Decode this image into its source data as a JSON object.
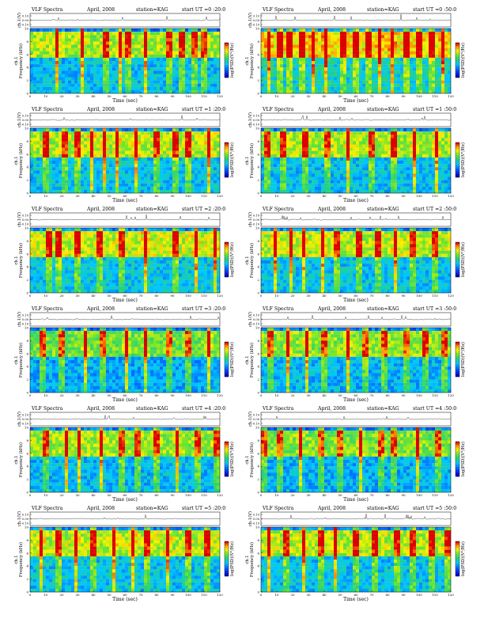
{
  "page": {
    "title_text": "VLF Spectra",
    "month": "April, 2008",
    "station": "station=KAG"
  },
  "chart_data": [
    {
      "type": "heatmap",
      "title": "VLF Spectra",
      "date": "April, 2008",
      "station": "station=KAG",
      "start": "start  UT  =0 :20:0",
      "strip_label": "ch.1(V)",
      "ylabel": "Frequency (kHz)",
      "ylabel_prefix": "ch.1",
      "xlabel": "Time  (sec)",
      "colorbar_label": "log(PSD)(V²/Hz)",
      "xlim": [
        0,
        120
      ],
      "ylim": [
        0,
        10
      ],
      "xticks": [
        0,
        10,
        20,
        30,
        40,
        50,
        60,
        70,
        80,
        90,
        100,
        110,
        120
      ],
      "yticks": [
        0,
        2,
        4,
        6,
        8,
        10
      ],
      "strip_ticks": [
        "0.10",
        "0.00",
        "-0.10"
      ],
      "intensity": 0.5,
      "burst_times": [
        17,
        33,
        48,
        57,
        62,
        73,
        88,
        96,
        104,
        110
      ]
    },
    {
      "type": "heatmap",
      "title": "VLF Spectra",
      "date": "April, 2008",
      "station": "station=KAG",
      "start": "start  UT  =0 :50:0",
      "strip_label": "ch.1(V)",
      "ylabel": "Frequency (kHz)",
      "ylabel_prefix": "ch.1",
      "xlabel": "Time  (sec)",
      "colorbar_label": "log(PSD)(V²/Hz)",
      "xlim": [
        0,
        120
      ],
      "ylim": [
        0,
        10
      ],
      "xticks": [
        0,
        10,
        20,
        30,
        40,
        50,
        60,
        70,
        80,
        90,
        100,
        110,
        120
      ],
      "yticks": [
        0,
        2,
        4,
        6,
        8,
        10
      ],
      "strip_ticks": [
        "0.10",
        "0.00",
        "-0.10"
      ],
      "intensity": 0.8,
      "burst_times": [
        5,
        12,
        18,
        26,
        33,
        41,
        52,
        60,
        68,
        75,
        83,
        92,
        100,
        108,
        115
      ]
    },
    {
      "type": "heatmap",
      "title": "VLF Spectra",
      "date": "April, 2008",
      "station": "station=KAG",
      "start": "start  UT  =1 :20:0",
      "strip_label": "ch.1(V)",
      "ylabel": "Frequency (kHz)",
      "ylabel_prefix": "ch.1",
      "xlabel": "Time  (sec)",
      "colorbar_label": "log(PSD)(V²/Hz)",
      "xlim": [
        0,
        120
      ],
      "ylim": [
        0,
        10
      ],
      "xticks": [
        0,
        10,
        20,
        30,
        40,
        50,
        60,
        70,
        80,
        90,
        100,
        110,
        120
      ],
      "yticks": [
        0,
        2,
        4,
        6,
        8,
        10
      ],
      "strip_ticks": [
        "0.10",
        "0.00",
        "-0.10"
      ],
      "intensity": 0.55,
      "burst_times": [
        10,
        22,
        30,
        39,
        47,
        55,
        67,
        80,
        92,
        100,
        113
      ]
    },
    {
      "type": "heatmap",
      "title": "VLF Spectra",
      "date": "April, 2008",
      "station": "station=KAG",
      "start": "start  UT  =1 :50:0",
      "strip_label": "ch.1(V)",
      "ylabel": "Frequency (kHz)",
      "ylabel_prefix": "ch.1",
      "xlabel": "Time  (sec)",
      "colorbar_label": "log(PSD)(V²/Hz)",
      "xlim": [
        0,
        120
      ],
      "ylim": [
        0,
        10
      ],
      "xticks": [
        0,
        10,
        20,
        30,
        40,
        50,
        60,
        70,
        80,
        90,
        100,
        110,
        120
      ],
      "yticks": [
        0,
        2,
        4,
        6,
        8,
        10
      ],
      "strip_ticks": [
        "0.10",
        "0.00",
        "-0.10"
      ],
      "intensity": 0.5,
      "burst_times": [
        4,
        14,
        28,
        42,
        55,
        70,
        84,
        97,
        111
      ]
    },
    {
      "type": "heatmap",
      "title": "VLF Spectra",
      "date": "April, 2008",
      "station": "station=KAG",
      "start": "start  UT  =2 :20:0",
      "strip_label": "ch.1(V)",
      "ylabel": "Frequency (kHz)",
      "ylabel_prefix": "ch.1",
      "xlabel": "Time  (sec)",
      "colorbar_label": "log(PSD)(V²/Hz)",
      "xlim": [
        0,
        120
      ],
      "ylim": [
        0,
        10
      ],
      "xticks": [
        0,
        10,
        20,
        30,
        40,
        50,
        60,
        70,
        80,
        90,
        100,
        110,
        120
      ],
      "yticks": [
        0,
        2,
        4,
        6,
        8,
        10
      ],
      "strip_ticks": [
        "0.10",
        "0.00",
        "-0.10"
      ],
      "intensity": 0.6,
      "burst_times": [
        12,
        18,
        30,
        44,
        58,
        73,
        92,
        105,
        117
      ]
    },
    {
      "type": "heatmap",
      "title": "VLF Spectra",
      "date": "April, 2008",
      "station": "station=KAG",
      "start": "start  UT  =2 :50:0",
      "strip_label": "ch.1(V)",
      "ylabel": "Frequency (kHz)",
      "ylabel_prefix": "ch.1",
      "xlabel": "Time  (sec)",
      "colorbar_label": "log(PSD)(V²/Hz)",
      "xlim": [
        0,
        120
      ],
      "ylim": [
        0,
        10
      ],
      "xticks": [
        0,
        10,
        20,
        30,
        40,
        50,
        60,
        70,
        80,
        90,
        100,
        110,
        120
      ],
      "yticks": [
        0,
        2,
        4,
        6,
        8,
        10
      ],
      "strip_ticks": [
        "0.10",
        "0.00",
        "-0.10"
      ],
      "intensity": 0.55,
      "burst_times": [
        9,
        19,
        27,
        39,
        48,
        62,
        74,
        85,
        96,
        110
      ]
    },
    {
      "type": "heatmap",
      "title": "VLF Spectra",
      "date": "April, 2008",
      "station": "station=KAG",
      "start": "start  UT  =3 :20:0",
      "strip_label": "ch.1(V)",
      "ylabel": "Frequency (kHz)",
      "ylabel_prefix": "ch.1",
      "xlabel": "Time  (sec)",
      "colorbar_label": "log(PSD)(V²/Hz)",
      "xlim": [
        0,
        120
      ],
      "ylim": [
        0,
        10
      ],
      "xticks": [
        0,
        10,
        20,
        30,
        40,
        50,
        60,
        70,
        80,
        90,
        100,
        110,
        120
      ],
      "yticks": [
        0,
        2,
        4,
        6,
        8,
        10
      ],
      "strip_ticks": [
        "0.10",
        "0.00",
        "-0.10"
      ],
      "intensity": 0.3,
      "burst_times": [
        8,
        20,
        35,
        46,
        61,
        73,
        88,
        100,
        113
      ]
    },
    {
      "type": "heatmap",
      "title": "VLF Spectra",
      "date": "April, 2008",
      "station": "station=KAG",
      "start": "start  UT  =3 :50:0",
      "strip_label": "ch.1(V)",
      "ylabel": "Frequency (kHz)",
      "ylabel_prefix": "ch.1",
      "xlabel": "Time  (sec)",
      "colorbar_label": "log(PSD)(V²/Hz)",
      "xlim": [
        0,
        120
      ],
      "ylim": [
        0,
        10
      ],
      "xticks": [
        0,
        10,
        20,
        30,
        40,
        50,
        60,
        70,
        80,
        90,
        100,
        110,
        120
      ],
      "yticks": [
        0,
        2,
        4,
        6,
        8,
        10
      ],
      "strip_ticks": [
        "0.10",
        "0.00",
        "-0.10"
      ],
      "intensity": 0.4,
      "burst_times": [
        6,
        17,
        29,
        40,
        55,
        66,
        78,
        92,
        104,
        116
      ]
    },
    {
      "type": "heatmap",
      "title": "VLF Spectra",
      "date": "April, 2008",
      "station": "station=KAG",
      "start": "start  UT  =4 :20:0",
      "strip_label": "ch.1(V)",
      "ylabel": "Frequency (kHz)",
      "ylabel_prefix": "ch.1",
      "xlabel": "Time  (sec)",
      "colorbar_label": "log(PSD)(V²/Hz)",
      "xlim": [
        0,
        120
      ],
      "ylim": [
        0,
        10
      ],
      "xticks": [
        0,
        10,
        20,
        30,
        40,
        50,
        60,
        70,
        80,
        90,
        100,
        110,
        120
      ],
      "yticks": [
        0,
        2,
        4,
        6,
        8,
        10
      ],
      "strip_ticks": [
        "0.10",
        "0.00",
        "-0.10"
      ],
      "intensity": 0.45,
      "burst_times": [
        10,
        23,
        31,
        45,
        58,
        68,
        80,
        93,
        106,
        118
      ]
    },
    {
      "type": "heatmap",
      "title": "VLF Spectra",
      "date": "April, 2008",
      "station": "station=KAG",
      "start": "start  UT  =4 :50:0",
      "strip_label": "ch.1(V)",
      "ylabel": "Frequency (kHz)",
      "ylabel_prefix": "ch.1",
      "xlabel": "Time  (sec)",
      "colorbar_label": "log(PSD)(V²/Hz)",
      "xlim": [
        0,
        120
      ],
      "ylim": [
        0,
        10
      ],
      "xticks": [
        0,
        10,
        20,
        30,
        40,
        50,
        60,
        70,
        80,
        90,
        100,
        110,
        120
      ],
      "yticks": [
        0,
        2,
        4,
        6,
        8,
        10
      ],
      "strip_ticks": [
        "0.10",
        "0.00",
        "-0.10"
      ],
      "intensity": 0.35,
      "burst_times": [
        2,
        12,
        25,
        38,
        50,
        63,
        76,
        84,
        99,
        112
      ]
    },
    {
      "type": "heatmap",
      "title": "VLF Spectra",
      "date": "April, 2008",
      "station": "station=KAG",
      "start": "start  UT  =5 :20:0",
      "strip_label": "ch.1(V)",
      "ylabel": "Frequency (kHz)",
      "ylabel_prefix": "ch.1",
      "xlabel": "Time  (sec)",
      "colorbar_label": "log(PSD)(V²/Hz)",
      "xlim": [
        0,
        120
      ],
      "ylim": [
        0,
        10
      ],
      "xticks": [
        0,
        10,
        20,
        30,
        40,
        50,
        60,
        70,
        80,
        90,
        100,
        110,
        120
      ],
      "yticks": [
        0,
        2,
        4,
        6,
        8,
        10
      ],
      "strip_ticks": [
        "0.10",
        "0.00",
        "-0.10"
      ],
      "intensity": 0.55,
      "burst_times": [
        7,
        18,
        29,
        40,
        53,
        65,
        74,
        87,
        100,
        112
      ]
    },
    {
      "type": "heatmap",
      "title": "VLF Spectra",
      "date": "April, 2008",
      "station": "station=KAG",
      "start": "start  UT  =5 :50:0",
      "strip_label": "ch.1(V)",
      "ylabel": "Frequency (kHz)",
      "ylabel_prefix": "ch.1",
      "xlabel": "Time  (sec)",
      "colorbar_label": "log(PSD)(V²/Hz)",
      "xlim": [
        0,
        120
      ],
      "ylim": [
        0,
        10
      ],
      "xticks": [
        0,
        10,
        20,
        30,
        40,
        50,
        60,
        70,
        80,
        90,
        100,
        110,
        120
      ],
      "yticks": [
        0,
        2,
        4,
        6,
        8,
        10
      ],
      "strip_ticks": [
        "0.10",
        "0.00",
        "-0.10"
      ],
      "intensity": 0.55,
      "burst_times": [
        5,
        16,
        27,
        38,
        47,
        60,
        72,
        86,
        96,
        108,
        118
      ]
    }
  ]
}
